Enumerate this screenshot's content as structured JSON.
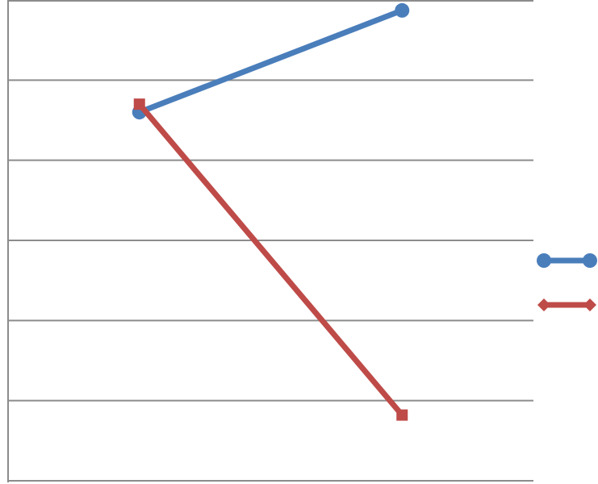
{
  "chart_data": {
    "type": "line",
    "title": "",
    "xlabel": "",
    "ylabel": "",
    "categories": [
      "",
      ""
    ],
    "ylim": [
      0,
      6
    ],
    "grid": true,
    "legend_position": "right",
    "series": [
      {
        "values": [
          4.6,
          5.87
        ],
        "color": "#4a7ebb",
        "marker": "circle"
      },
      {
        "values": [
          4.7,
          0.82
        ],
        "color": "#be4b48",
        "marker": "square",
        "legend_marker": "diamond"
      }
    ]
  }
}
